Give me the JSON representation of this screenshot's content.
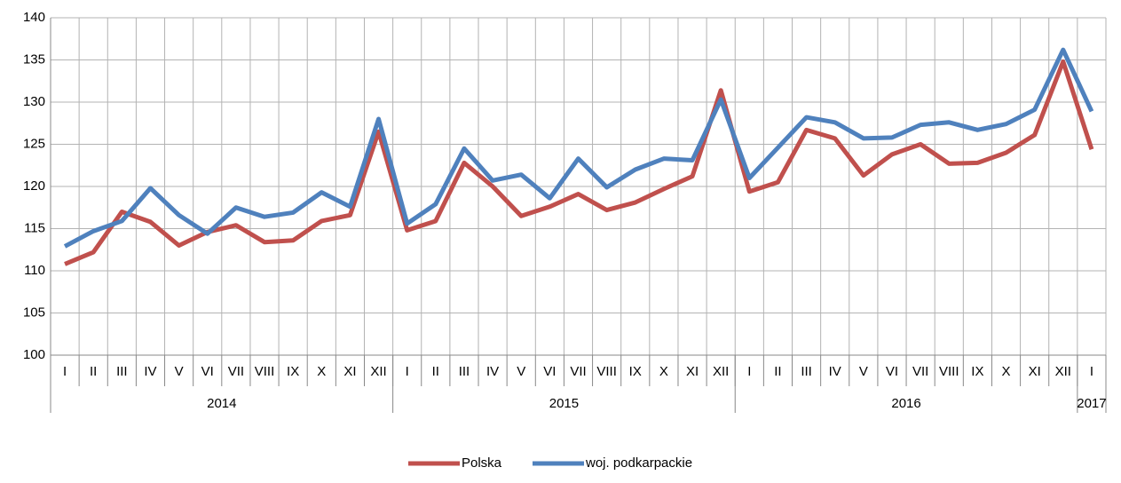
{
  "chart_data": {
    "type": "line",
    "categories": [
      "I",
      "II",
      "III",
      "IV",
      "V",
      "VI",
      "VII",
      "VIII",
      "IX",
      "X",
      "XI",
      "XII",
      "I",
      "II",
      "III",
      "IV",
      "V",
      "VI",
      "VII",
      "VIII",
      "IX",
      "X",
      "XI",
      "XII",
      "I",
      "II",
      "III",
      "IV",
      "V",
      "VI",
      "VII",
      "VIII",
      "IX",
      "X",
      "XI",
      "XII",
      "I"
    ],
    "year_groups": [
      "2014",
      null,
      null,
      null,
      null,
      null,
      null,
      null,
      null,
      null,
      null,
      null,
      "2015",
      null,
      null,
      null,
      null,
      null,
      null,
      null,
      null,
      null,
      null,
      null,
      "2016",
      null,
      null,
      null,
      null,
      null,
      null,
      null,
      null,
      null,
      null,
      null,
      "2017"
    ],
    "series": [
      {
        "name": "Polska",
        "color": "#c0504d",
        "values": [
          110.8,
          112.2,
          117.0,
          115.8,
          113.0,
          114.6,
          115.4,
          113.4,
          113.6,
          115.9,
          116.6,
          126.5,
          114.8,
          115.9,
          122.8,
          120.0,
          116.5,
          117.6,
          119.1,
          117.2,
          118.1,
          119.7,
          121.2,
          131.4,
          119.4,
          120.5,
          126.7,
          125.7,
          121.3,
          123.8,
          125.0,
          122.7,
          122.8,
          124.0,
          126.1,
          134.8,
          124.4
        ]
      },
      {
        "name": "woj. podkarpackie",
        "color": "#4f81bd",
        "values": [
          112.9,
          114.7,
          115.9,
          119.8,
          116.6,
          114.4,
          117.5,
          116.4,
          116.9,
          119.3,
          117.6,
          128.0,
          115.6,
          117.9,
          124.5,
          120.7,
          121.4,
          118.6,
          123.3,
          119.9,
          122.0,
          123.3,
          123.1,
          130.3,
          121.0,
          124.6,
          128.2,
          127.6,
          125.7,
          125.8,
          127.3,
          127.6,
          126.7,
          127.4,
          129.1,
          136.2,
          128.9
        ]
      }
    ],
    "ylim": [
      100,
      140
    ],
    "yticks": [
      100,
      105,
      110,
      115,
      120,
      125,
      130,
      135,
      140
    ],
    "grid": true,
    "legend": "bottom"
  }
}
